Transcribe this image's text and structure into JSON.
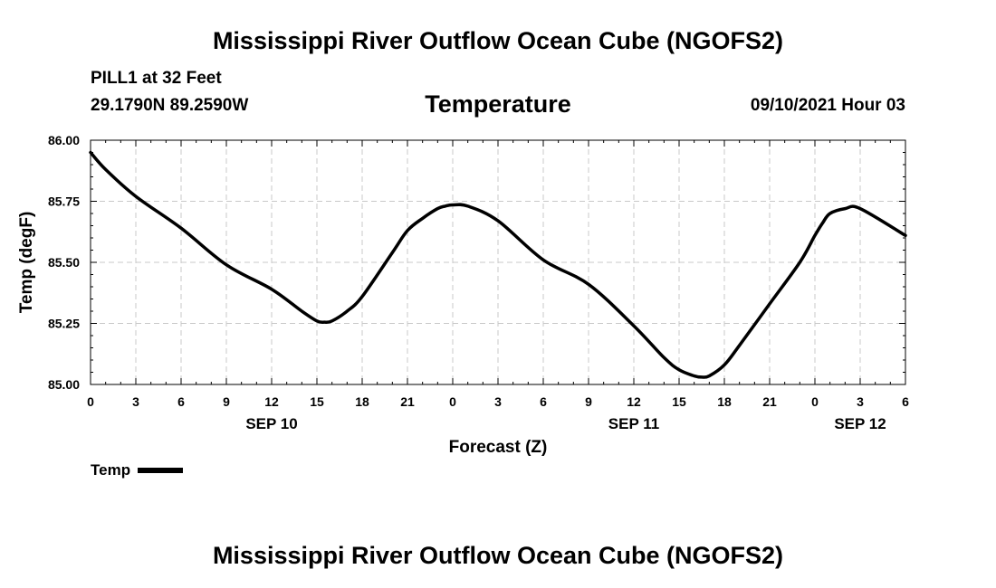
{
  "header": {
    "title": "Mississippi River Outflow Ocean Cube (NGOFS2)",
    "station": "PILL1 at 32 Feet",
    "coordinates": "29.1790N  89.2590W",
    "plot_title": "Temperature",
    "datetime": "09/10/2021 Hour 03"
  },
  "footer": {
    "title": "Mississippi River Outflow Ocean Cube (NGOFS2)"
  },
  "legend": {
    "label": "Temp"
  },
  "chart_data": {
    "type": "line",
    "title": "Temperature",
    "xlabel": "Forecast (Z)",
    "ylabel": "Temp (degF)",
    "xlim": [
      0,
      54
    ],
    "ylim": [
      85.0,
      86.0
    ],
    "y_ticks": [
      "85.00",
      "85.25",
      "85.50",
      "85.75",
      "86.00"
    ],
    "y_tick_values": [
      85.0,
      85.25,
      85.5,
      85.75,
      86.0
    ],
    "x_tick_hours": [
      0,
      3,
      6,
      9,
      12,
      15,
      18,
      21,
      24,
      27,
      30,
      33,
      36,
      39,
      42,
      45,
      48,
      51,
      54
    ],
    "x_tick_labels": [
      "0",
      "3",
      "6",
      "9",
      "12",
      "15",
      "18",
      "21",
      "0",
      "3",
      "6",
      "9",
      "12",
      "15",
      "18",
      "21",
      "0",
      "3",
      "6"
    ],
    "date_labels": [
      {
        "hour": 12,
        "label": "SEP 10"
      },
      {
        "hour": 36,
        "label": "SEP 11"
      },
      {
        "hour": 51,
        "label": "SEP 12"
      }
    ],
    "grid": true,
    "series": [
      {
        "name": "Temp",
        "color": "#000000",
        "x": [
          0,
          1,
          3,
          6,
          9,
          12,
          14,
          15,
          15.5,
          16,
          17,
          18,
          20,
          21,
          22,
          23,
          23.5,
          24,
          25,
          27,
          30,
          33,
          36,
          38,
          39,
          40,
          40.5,
          41,
          42,
          43,
          45,
          47,
          48,
          48.5,
          49,
          50,
          51,
          54
        ],
        "values": [
          85.95,
          85.88,
          85.77,
          85.64,
          85.49,
          85.39,
          85.3,
          85.26,
          85.255,
          85.26,
          85.3,
          85.36,
          85.54,
          85.63,
          85.68,
          85.72,
          85.73,
          85.735,
          85.73,
          85.67,
          85.51,
          85.41,
          85.24,
          85.11,
          85.06,
          85.035,
          85.03,
          85.035,
          85.08,
          85.16,
          85.33,
          85.5,
          85.61,
          85.66,
          85.7,
          85.72,
          85.72,
          85.61
        ]
      }
    ]
  }
}
